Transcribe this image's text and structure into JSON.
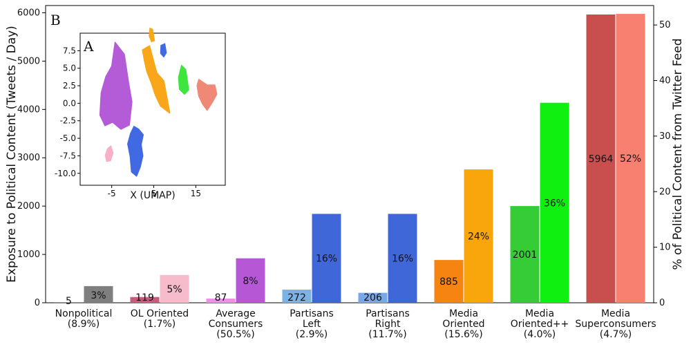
{
  "chart_data": [
    {
      "type": "bar",
      "panel_label": "B",
      "categories": [
        [
          "Nonpolitical",
          "(8.9%)"
        ],
        [
          "OL Oriented",
          "(1.7%)"
        ],
        [
          "Average",
          "Consumers",
          "(50.5%)"
        ],
        [
          "Partisans",
          "Left",
          "(2.9%)"
        ],
        [
          "Partisans",
          "Right",
          "(11.7%)"
        ],
        [
          "Media",
          "Oriented",
          "(15.6%)"
        ],
        [
          "Media",
          "Oriented++",
          "(4.0%)"
        ],
        [
          "Media",
          "Superconsumers",
          "(4.7%)"
        ]
      ],
      "colors": {
        "exposure": [
          "#2f2f2f",
          "#c85a7b",
          "#f08fe6",
          "#7bb3e6",
          "#7aa7e6",
          "#f58410",
          "#36cc36",
          "#c94f4f"
        ],
        "percent": [
          "#7f7f7f",
          "#f7bccb",
          "#b657d6",
          "#3f67d8",
          "#3f67d8",
          "#f9a50c",
          "#10f010",
          "#f88070"
        ]
      },
      "series": [
        {
          "axis": "left",
          "values": [
            5,
            119,
            87,
            272,
            206,
            885,
            2001,
            5964
          ],
          "labels": [
            "5",
            "119",
            "87",
            "272",
            "206",
            "885",
            "2001",
            "5964"
          ]
        },
        {
          "axis": "right",
          "values": [
            3,
            5,
            8,
            16,
            16,
            24,
            36,
            52
          ],
          "labels": [
            "3%",
            "5%",
            "8%",
            "16%",
            "16%",
            "24%",
            "36%",
            "52%"
          ]
        }
      ],
      "ylabel": "Exposure to Political Content (Tweets / Day)",
      "ylabel_right": "% of Political Content from Twitter Feed",
      "ylim": [
        0,
        6150
      ],
      "ylim_right": [
        0,
        53.5
      ],
      "yticks": [
        0,
        1000,
        2000,
        3000,
        4000,
        5000,
        6000
      ],
      "yticks_right": [
        0,
        10,
        20,
        30,
        40,
        50
      ],
      "grid": false
    },
    {
      "type": "scatter",
      "panel_label": "A",
      "xlabel": "X (UMAP)",
      "xticks": [
        -5,
        5,
        15
      ],
      "yticks": [
        7.5,
        5.0,
        2.5,
        0.0,
        -2.5,
        -5.0,
        -7.5,
        -10.0
      ],
      "xlim": [
        -12.5,
        22
      ],
      "ylim": [
        -11.7,
        10
      ],
      "clusters": [
        {
          "color": "#b45bd8",
          "center": [
            -3.2,
            0.5
          ]
        },
        {
          "color": "#f9a718",
          "center": [
            5.0,
            4.0
          ]
        },
        {
          "color": "#4169e1",
          "center": [
            0.8,
            -6.7
          ]
        },
        {
          "color": "#3ee53e",
          "center": [
            12.0,
            3.5
          ]
        },
        {
          "color": "#f08878",
          "center": [
            17.3,
            1.6
          ]
        },
        {
          "color": "#f7b0c8",
          "center": [
            -5.6,
            -7.3
          ]
        }
      ]
    }
  ]
}
